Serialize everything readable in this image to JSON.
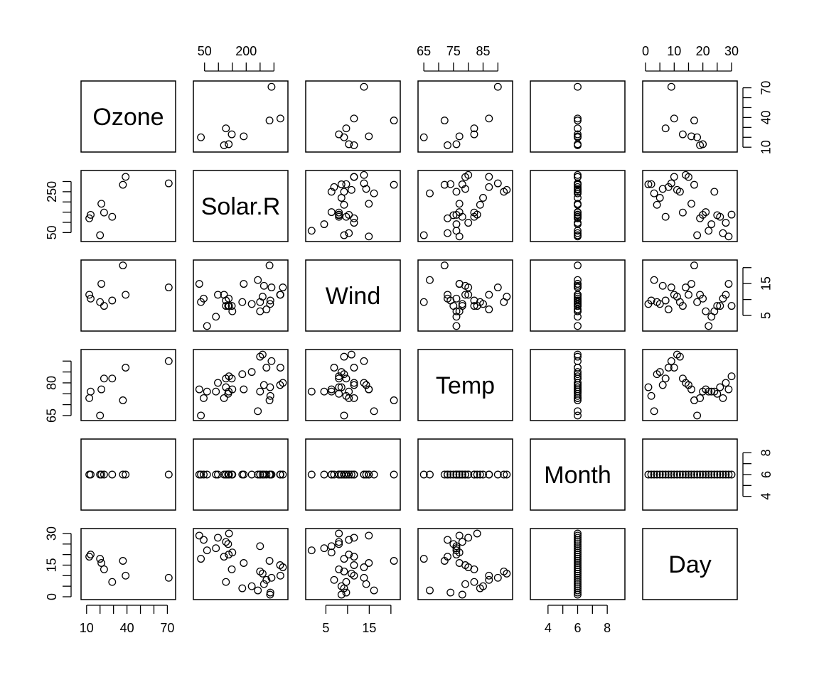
{
  "chart_data": {
    "type": "scatter-matrix",
    "variables": [
      {
        "name": "Ozone",
        "range": [
          8,
          74
        ]
      },
      {
        "name": "Solar.R",
        "range": [
          20,
          340
        ]
      },
      {
        "name": "Wind",
        "range": [
          1,
          21.5
        ]
      },
      {
        "name": "Temp",
        "range": [
          64,
          94
        ]
      },
      {
        "name": "Month",
        "range": [
          3,
          9
        ]
      },
      {
        "name": "Day",
        "range": [
          0,
          31
        ]
      }
    ],
    "axes": [
      {
        "var": 0,
        "side": "bottom",
        "ticks": [
          10,
          20,
          30,
          40,
          50,
          60,
          70
        ],
        "labels": [
          {
            "v": 10,
            "t": "10"
          },
          {
            "v": 40,
            "t": "40"
          },
          {
            "v": 70,
            "t": "70"
          }
        ]
      },
      {
        "var": 1,
        "side": "top",
        "ticks": [
          50,
          100,
          150,
          200,
          250,
          300
        ],
        "labels": [
          {
            "v": 50,
            "t": "50"
          },
          {
            "v": 200,
            "t": "200"
          }
        ]
      },
      {
        "var": 2,
        "side": "bottom",
        "ticks": [
          5,
          10,
          15,
          20
        ],
        "labels": [
          {
            "v": 5,
            "t": "5"
          },
          {
            "v": 15,
            "t": "15"
          }
        ]
      },
      {
        "var": 3,
        "side": "top",
        "ticks": [
          65,
          70,
          75,
          80,
          85,
          90
        ],
        "labels": [
          {
            "v": 65,
            "t": "65"
          },
          {
            "v": 75,
            "t": "75"
          },
          {
            "v": 85,
            "t": "85"
          }
        ]
      },
      {
        "var": 4,
        "side": "bottom",
        "ticks": [
          4,
          5,
          6,
          7,
          8
        ],
        "labels": [
          {
            "v": 4,
            "t": "4"
          },
          {
            "v": 6,
            "t": "6"
          },
          {
            "v": 8,
            "t": "8"
          }
        ]
      },
      {
        "var": 5,
        "side": "top",
        "ticks": [
          0,
          5,
          10,
          15,
          20,
          25,
          30
        ],
        "labels": [
          {
            "v": 0,
            "t": "0"
          },
          {
            "v": 10,
            "t": "10"
          },
          {
            "v": 20,
            "t": "20"
          },
          {
            "v": 30,
            "t": "30"
          }
        ]
      },
      {
        "var": 0,
        "side": "right",
        "ticks": [
          10,
          20,
          30,
          40,
          50,
          60,
          70
        ],
        "labels": [
          {
            "v": 10,
            "t": "10"
          },
          {
            "v": 40,
            "t": "40"
          },
          {
            "v": 70,
            "t": "70"
          }
        ]
      },
      {
        "var": 1,
        "side": "left",
        "ticks": [
          50,
          100,
          150,
          200,
          250,
          300
        ],
        "labels": [
          {
            "v": 50,
            "t": "50"
          },
          {
            "v": 250,
            "t": "250"
          }
        ]
      },
      {
        "var": 2,
        "side": "right",
        "ticks": [
          5,
          10,
          15,
          20
        ],
        "labels": [
          {
            "v": 5,
            "t": "5"
          },
          {
            "v": 15,
            "t": "15"
          }
        ]
      },
      {
        "var": 3,
        "side": "left",
        "ticks": [
          65,
          70,
          75,
          80,
          85,
          90
        ],
        "labels": [
          {
            "v": 65,
            "t": "65"
          },
          {
            "v": 80,
            "t": "80"
          }
        ]
      },
      {
        "var": 4,
        "side": "right",
        "ticks": [
          4,
          5,
          6,
          7,
          8
        ],
        "labels": [
          {
            "v": 4,
            "t": "4"
          },
          {
            "v": 6,
            "t": "6"
          },
          {
            "v": 8,
            "t": "8"
          }
        ]
      },
      {
        "var": 5,
        "side": "left",
        "ticks": [
          0,
          5,
          10,
          15,
          20,
          25,
          30
        ],
        "labels": [
          {
            "v": 0,
            "t": "0"
          },
          {
            "v": 15,
            "t": "15"
          },
          {
            "v": 30,
            "t": "30"
          }
        ]
      }
    ],
    "complete_cases": [
      [
        71,
        291,
        13.8,
        90,
        6,
        9
      ],
      [
        39,
        323,
        11.5,
        87,
        6,
        10
      ],
      [
        23,
        148,
        8.0,
        82,
        6,
        13
      ],
      [
        21,
        191,
        14.9,
        77,
        6,
        16
      ],
      [
        37,
        284,
        20.7,
        72,
        6,
        17
      ],
      [
        20,
        37,
        9.2,
        65,
        6,
        18
      ],
      [
        12,
        120,
        11.5,
        73,
        6,
        19
      ],
      [
        13,
        137,
        10.3,
        76,
        6,
        20
      ],
      [
        29,
        127,
        9.7,
        82,
        6,
        7
      ]
    ],
    "solar_wind_temp_day": [
      [
        286,
        8.6,
        78,
        1
      ],
      [
        287,
        9.7,
        74,
        2
      ],
      [
        242,
        16.1,
        67,
        3
      ],
      [
        186,
        9.2,
        84,
        4
      ],
      [
        220,
        8.6,
        85,
        5
      ],
      [
        264,
        14.3,
        79,
        6
      ],
      [
        127,
        9.7,
        82,
        7
      ],
      [
        273,
        6.9,
        87,
        8
      ],
      [
        291,
        13.8,
        90,
        9
      ],
      [
        323,
        11.5,
        87,
        10
      ],
      [
        259,
        10.9,
        93,
        11
      ],
      [
        250,
        9.2,
        92,
        12
      ],
      [
        148,
        8.0,
        82,
        13
      ],
      [
        332,
        13.8,
        80,
        14
      ],
      [
        322,
        11.5,
        79,
        15
      ],
      [
        191,
        14.9,
        77,
        16
      ],
      [
        284,
        20.7,
        72,
        17
      ],
      [
        37,
        9.2,
        65,
        18
      ],
      [
        120,
        11.5,
        73,
        19
      ],
      [
        137,
        10.3,
        76,
        20
      ],
      [
        150,
        6.3,
        77,
        21
      ],
      [
        59,
        1.7,
        76,
        22
      ],
      [
        91,
        4.6,
        76,
        23
      ],
      [
        250,
        6.3,
        76,
        24
      ],
      [
        135,
        8.0,
        75,
        25
      ],
      [
        127,
        8.0,
        78,
        26
      ],
      [
        47,
        10.3,
        73,
        27
      ],
      [
        98,
        11.5,
        80,
        28
      ],
      [
        31,
        14.9,
        77,
        29
      ],
      [
        138,
        8.0,
        83,
        30
      ]
    ]
  }
}
